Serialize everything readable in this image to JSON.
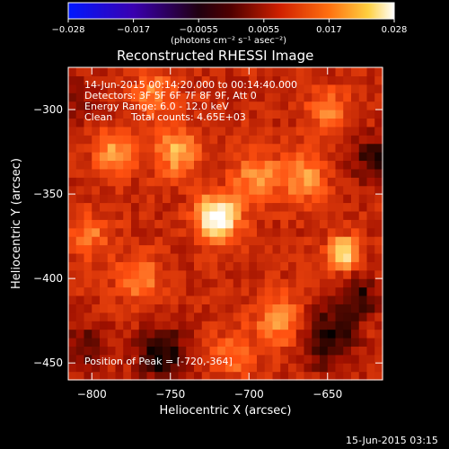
{
  "title": "Reconstructed RHESSI Image",
  "colorbar": {
    "ticks": [
      "−0.028",
      "−0.017",
      "−0.0055",
      "0.0055",
      "0.017",
      "0.028"
    ],
    "unit_label": "(photons cm⁻² s⁻¹ asec⁻²)"
  },
  "info": {
    "time_range": "14-Jun-2015 00:14:20.000 to 00:14:40.000",
    "detectors": "Detectors: 3F 5F 6F 7F 8F 9F, Att 0",
    "energy": "Energy Range: 6.0 - 12.0 keV",
    "algorithm": "Clean",
    "total_counts": "Total counts: 4.65E+03",
    "peak": "Position of Peak = [-720,-364]"
  },
  "footer_date": "15-Jun-2015 03:15",
  "chart_data": {
    "type": "heatmap",
    "title": "Reconstructed RHESSI Image",
    "xlabel": "Heliocentric X (arcsec)",
    "ylabel": "Heliocentric Y (arcsec)",
    "xlim": [
      -815,
      -615
    ],
    "ylim": [
      -460,
      -275
    ],
    "xticks": [
      -800,
      -750,
      -700,
      -650
    ],
    "yticks": [
      -300,
      -350,
      -400,
      -450
    ],
    "colorscale": {
      "min": -0.028,
      "max": 0.028,
      "colors": [
        "#0000ff",
        "#3a007a",
        "#000000",
        "#a01000",
        "#ff5010",
        "#ffd060",
        "#ffffff"
      ]
    },
    "sources": [
      {
        "x": -720,
        "y": -364,
        "amplitude": 0.028,
        "width": 9
      },
      {
        "x": -640,
        "y": -385,
        "amplitude": 0.019,
        "width": 7
      },
      {
        "x": -745,
        "y": -325,
        "amplitude": 0.013,
        "width": 10
      },
      {
        "x": -785,
        "y": -325,
        "amplitude": 0.012,
        "width": 9
      },
      {
        "x": -695,
        "y": -340,
        "amplitude": 0.012,
        "width": 10
      },
      {
        "x": -665,
        "y": -340,
        "amplitude": 0.011,
        "width": 10
      },
      {
        "x": -680,
        "y": -425,
        "amplitude": 0.011,
        "width": 11
      },
      {
        "x": -770,
        "y": -400,
        "amplitude": 0.01,
        "width": 10
      },
      {
        "x": -760,
        "y": -290,
        "amplitude": 0.01,
        "width": 9
      },
      {
        "x": -650,
        "y": -300,
        "amplitude": 0.009,
        "width": 9
      },
      {
        "x": -800,
        "y": -375,
        "amplitude": 0.008,
        "width": 9
      },
      {
        "x": -710,
        "y": -445,
        "amplitude": 0.008,
        "width": 10
      },
      {
        "x": -755,
        "y": -445,
        "amplitude": -0.012,
        "width": 12
      },
      {
        "x": -650,
        "y": -435,
        "amplitude": -0.013,
        "width": 12
      },
      {
        "x": -630,
        "y": -410,
        "amplitude": -0.01,
        "width": 9
      },
      {
        "x": -805,
        "y": -440,
        "amplitude": -0.008,
        "width": 10
      },
      {
        "x": -620,
        "y": -330,
        "amplitude": -0.01,
        "width": 10
      },
      {
        "x": -810,
        "y": -295,
        "amplitude": -0.006,
        "width": 8
      }
    ],
    "peak": [
      -720,
      -364
    ]
  }
}
